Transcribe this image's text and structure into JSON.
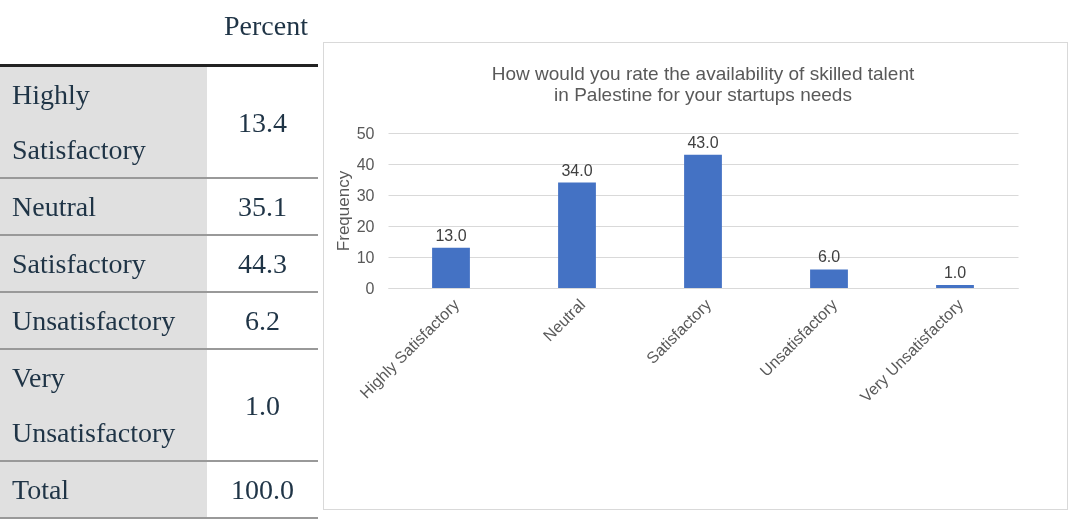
{
  "chart_data": [
    {
      "type": "other",
      "title": "Percent",
      "categories": [
        "Highly Satisfactory",
        "Neutral",
        "Satisfactory",
        "Unsatisfactory",
        "Very Unsatisfactory",
        "Total"
      ],
      "values": [
        13.4,
        35.1,
        44.3,
        6.2,
        1.0,
        100.0
      ],
      "value_labels": [
        "13.4",
        "35.1",
        "44.3",
        "6.2",
        "1.0",
        "100.0"
      ]
    },
    {
      "type": "bar",
      "title": "How would you rate the availability of skilled talent in Palestine for your startups needs",
      "ylabel": "Frequency",
      "categories": [
        "Highly Satisfactory",
        "Neutral",
        "Satisfactory",
        "Unsatisfactory",
        "Very Unsatisfactory"
      ],
      "values": [
        13,
        34,
        43,
        6,
        1
      ],
      "value_labels": [
        "13.0",
        "34.0",
        "43.0",
        "6.0",
        "1.0"
      ],
      "color": "#4472c4",
      "ylim": [
        0,
        50
      ],
      "yticks": [
        0,
        10,
        20,
        30,
        40,
        50
      ],
      "grid": "y"
    }
  ]
}
